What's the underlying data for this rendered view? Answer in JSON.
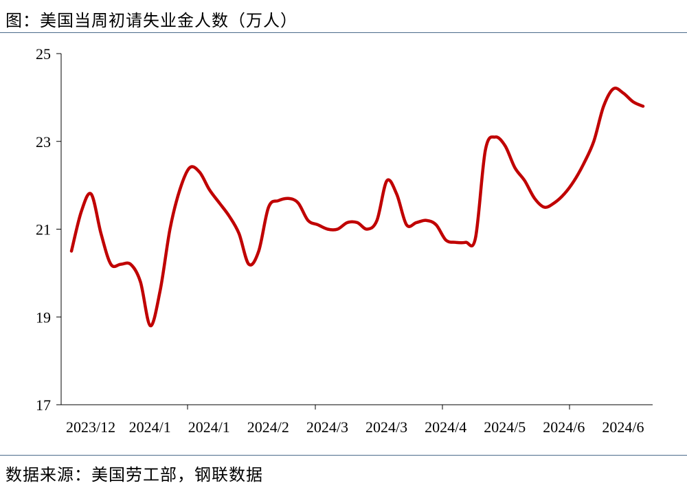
{
  "header": {
    "title": "图：美国当周初请失业金人数（万人）"
  },
  "footer": {
    "source": "数据来源：美国劳工部，钢联数据"
  },
  "colors": {
    "line": "#c00000",
    "rule": "#4a6a8a"
  },
  "chart_data": {
    "type": "line",
    "title": "图：美国当周初请失业金人数（万人）",
    "xlabel": "",
    "ylabel": "",
    "ylim": [
      17,
      25
    ],
    "yticks": [
      17,
      19,
      21,
      23,
      25
    ],
    "x_tick_labels": [
      "2023/12",
      "2024/1",
      "2024/1",
      "2024/2",
      "2024/3",
      "2024/3",
      "2024/4",
      "2024/5",
      "2024/6",
      "2024/6"
    ],
    "grid": false,
    "legend": "none",
    "series": [
      {
        "values": [
          20.5,
          21.4,
          21.8,
          20.9,
          20.2,
          20.2,
          20.2,
          19.8,
          18.8,
          19.6,
          21.0,
          21.9,
          22.4,
          22.3,
          21.9,
          21.6,
          21.3,
          20.9,
          20.2,
          20.5,
          21.5,
          21.65,
          21.7,
          21.6,
          21.2,
          21.1,
          21.0,
          21.0,
          21.15,
          21.15,
          21.0,
          21.2,
          22.1,
          21.8,
          21.1,
          21.15,
          21.2,
          21.1,
          20.75,
          20.7,
          20.7,
          20.8,
          22.8,
          23.1,
          22.9,
          22.4,
          22.1,
          21.7,
          21.5,
          21.6,
          21.8,
          22.1,
          22.5,
          23.0,
          23.8,
          24.2,
          24.1,
          23.9,
          23.8
        ]
      }
    ]
  }
}
